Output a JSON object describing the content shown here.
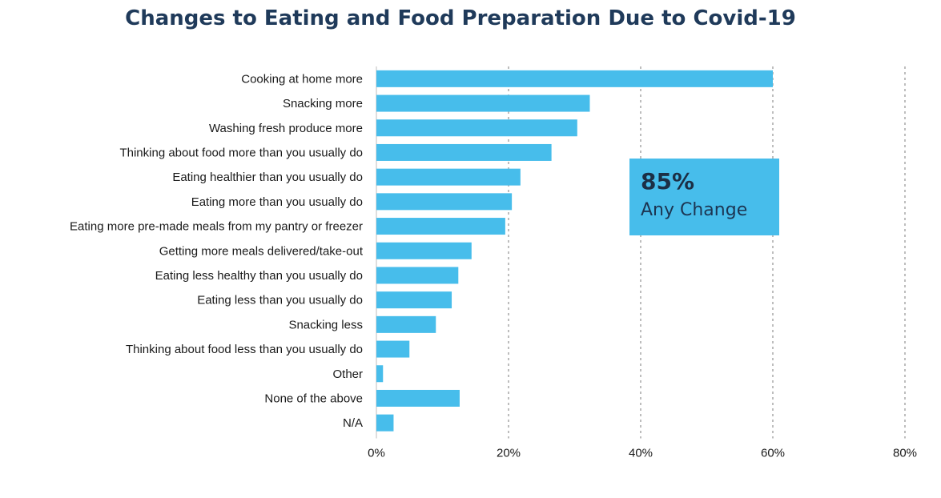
{
  "chart_data": {
    "type": "bar",
    "orientation": "horizontal",
    "title": "Changes to Eating and Food Preparation Due to Covid-19",
    "categories": [
      "Cooking at home more",
      "Snacking more",
      "Washing fresh produce more",
      "Thinking about food more than you usually do",
      "Eating healthier than you usually do",
      "Eating more than you usually do",
      "Eating more pre-made meals from my pantry or freezer",
      "Getting more meals delivered/take-out",
      "Eating less healthy than you usually do",
      "Eating less than you usually do",
      "Snacking less",
      "Thinking about food less than you usually do",
      "Other",
      "None of the above",
      "N/A"
    ],
    "values": [
      60,
      32.3,
      30.4,
      26.5,
      21.8,
      20.5,
      19.5,
      14.4,
      12.4,
      11.4,
      9,
      5,
      1,
      12.6,
      2.6
    ],
    "xlim": [
      0,
      80
    ],
    "xticks": [
      "0%",
      "20%",
      "40%",
      "60%",
      "80%"
    ],
    "grid": true,
    "bar_color": "#47bdeb",
    "annotation": {
      "value": "85%",
      "label": "Any Change"
    }
  }
}
